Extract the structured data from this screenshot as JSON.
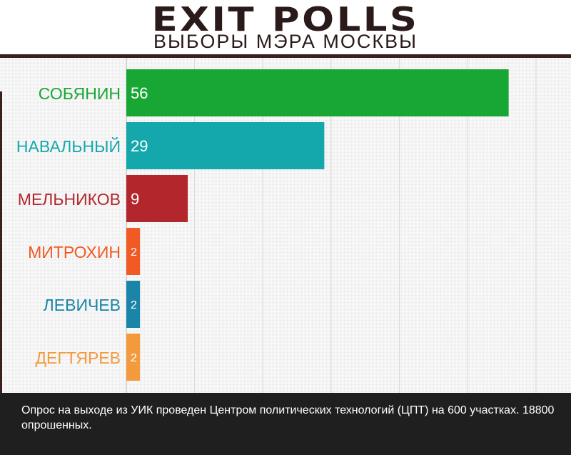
{
  "header": {
    "title": "EXIT  POLLS",
    "subtitle": "ВЫБОРЫ МЭРА МОСКВЫ"
  },
  "chart_data": {
    "type": "bar",
    "orientation": "horizontal",
    "categories": [
      "СОБЯНИН",
      "НАВАЛЬНЫЙ",
      "МЕЛЬНИКОВ",
      "МИТРОХИН",
      "ЛЕВИЧЕВ",
      "ДЕГТЯРЕВ"
    ],
    "values": [
      56,
      29,
      9,
      2,
      2,
      2
    ],
    "value_labels": [
      "56",
      "29",
      "9",
      "2",
      "2",
      "2"
    ],
    "colors": [
      "#18a635",
      "#14a8ad",
      "#b3272c",
      "#f15a24",
      "#1a85a8",
      "#f39a3d"
    ],
    "xlim": [
      0,
      62
    ],
    "grid": true,
    "legend": "none"
  },
  "footer": {
    "text": "Опрос на выходе из УИК проведен Центром политических технологий (ЦПТ) на 600 участках. 18800 опрошенных."
  }
}
